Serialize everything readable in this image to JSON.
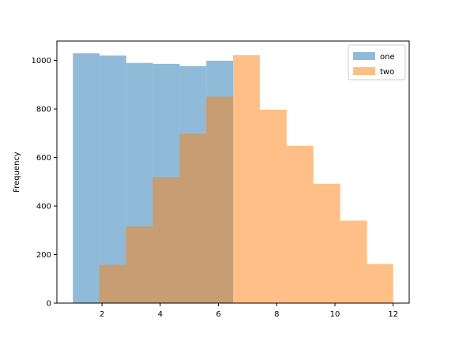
{
  "chart_data": {
    "type": "bar",
    "ylabel": "Frequency",
    "xlim": [
      0.45,
      12.55
    ],
    "ylim": [
      0,
      1080
    ],
    "xticks": [
      2,
      4,
      6,
      8,
      10,
      12
    ],
    "yticks": [
      0,
      200,
      400,
      600,
      800,
      1000
    ],
    "legend": {
      "placement": "top-right"
    },
    "series": [
      {
        "name": "one",
        "color": "#1f77b4",
        "opacity": 0.5,
        "bin_edges": [
          1.0,
          1.917,
          2.833,
          3.75,
          4.667,
          5.583,
          6.5
        ],
        "values": [
          1030,
          1020,
          990,
          986,
          977,
          999
        ]
      },
      {
        "name": "two",
        "color": "#ff7f0e",
        "opacity": 0.5,
        "bin_edges": [
          1.9,
          2.82,
          3.74,
          4.66,
          5.58,
          6.5,
          7.42,
          8.34,
          9.26,
          10.18,
          11.1,
          12.0
        ],
        "values": [
          158,
          316,
          519,
          698,
          851,
          1022,
          797,
          648,
          492,
          340,
          161
        ]
      }
    ]
  }
}
